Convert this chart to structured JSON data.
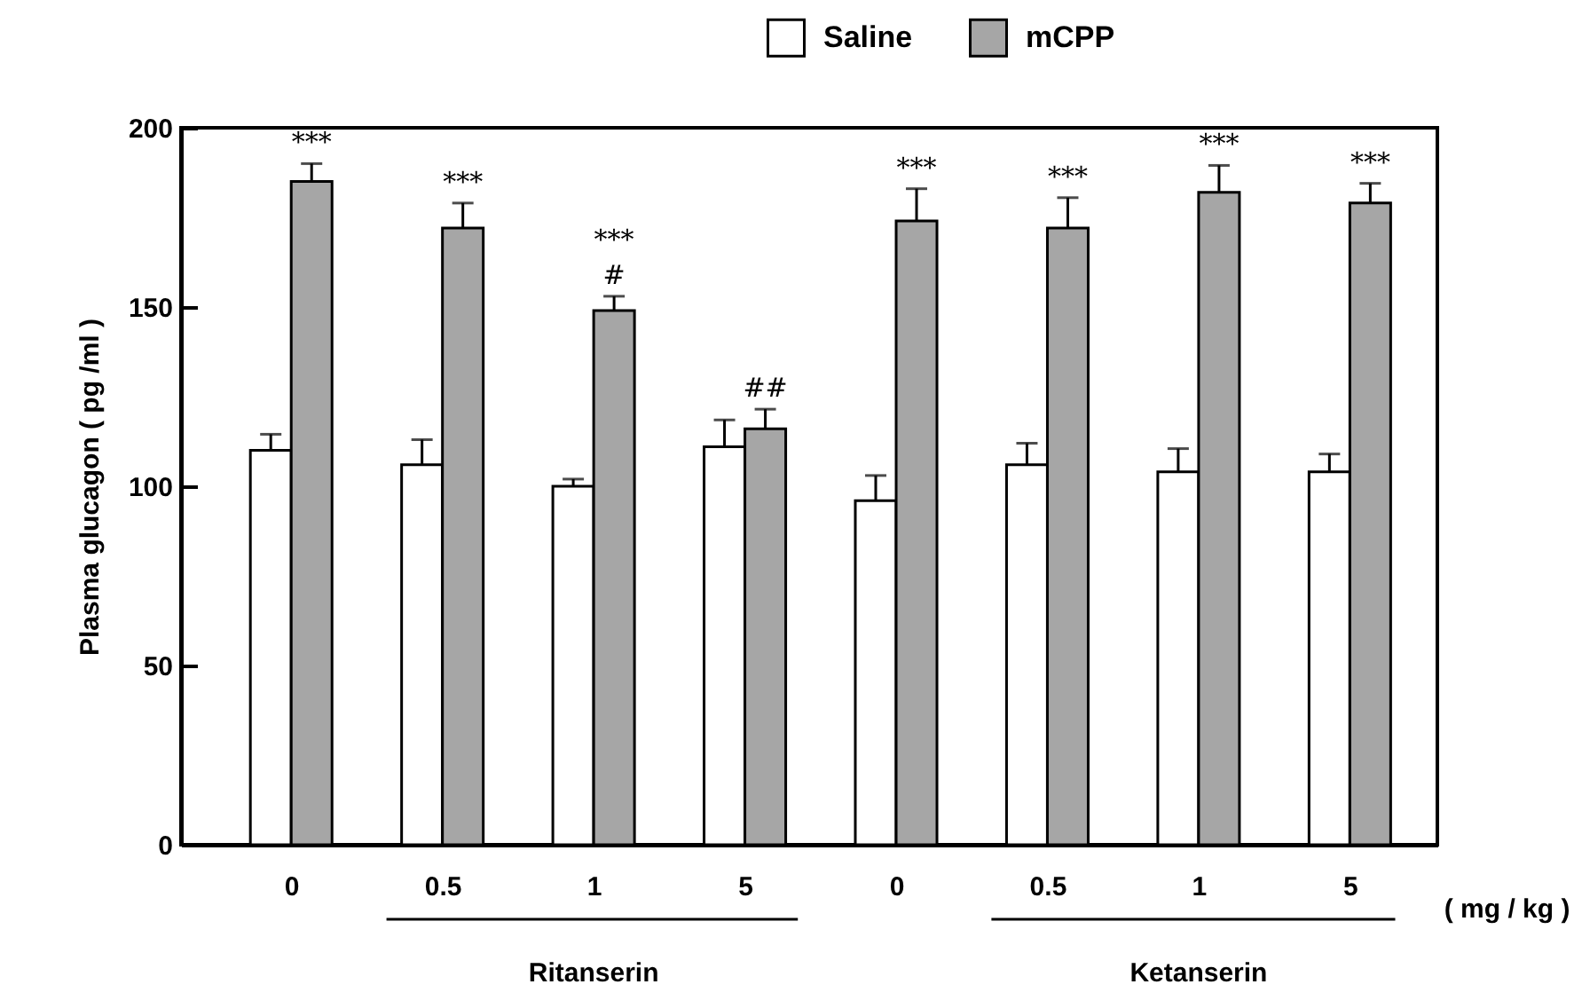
{
  "chart_data": {
    "type": "bar",
    "ylabel": "Plasma glucagon ( pg /ml )",
    "categories": [
      "0",
      "0.5",
      "1",
      "5",
      "0",
      "0.5",
      "1",
      "5"
    ],
    "series": [
      {
        "name": "Saline",
        "color": "#ffffff",
        "values": [
          110,
          106,
          100,
          111,
          96,
          106,
          104,
          104
        ],
        "errors": [
          4.5,
          7,
          2,
          7.5,
          7,
          6,
          6.5,
          5
        ]
      },
      {
        "name": "mCPP",
        "color": "#a6a6a6",
        "values": [
          185,
          172,
          149,
          116,
          174,
          172,
          182,
          179
        ],
        "errors": [
          5,
          7,
          4,
          5.5,
          9,
          8.5,
          7.5,
          5.5
        ],
        "value_labels": [
          "***",
          "***",
          "***\n#",
          "##",
          "***",
          "***",
          "***",
          "***"
        ]
      }
    ],
    "ylim": [
      0,
      200
    ],
    "yticks": [
      0,
      50,
      100,
      150,
      200
    ],
    "legend": "top",
    "annotations": [
      "( mg / kg )",
      "Ritanserin",
      "Ketanserin"
    ]
  }
}
